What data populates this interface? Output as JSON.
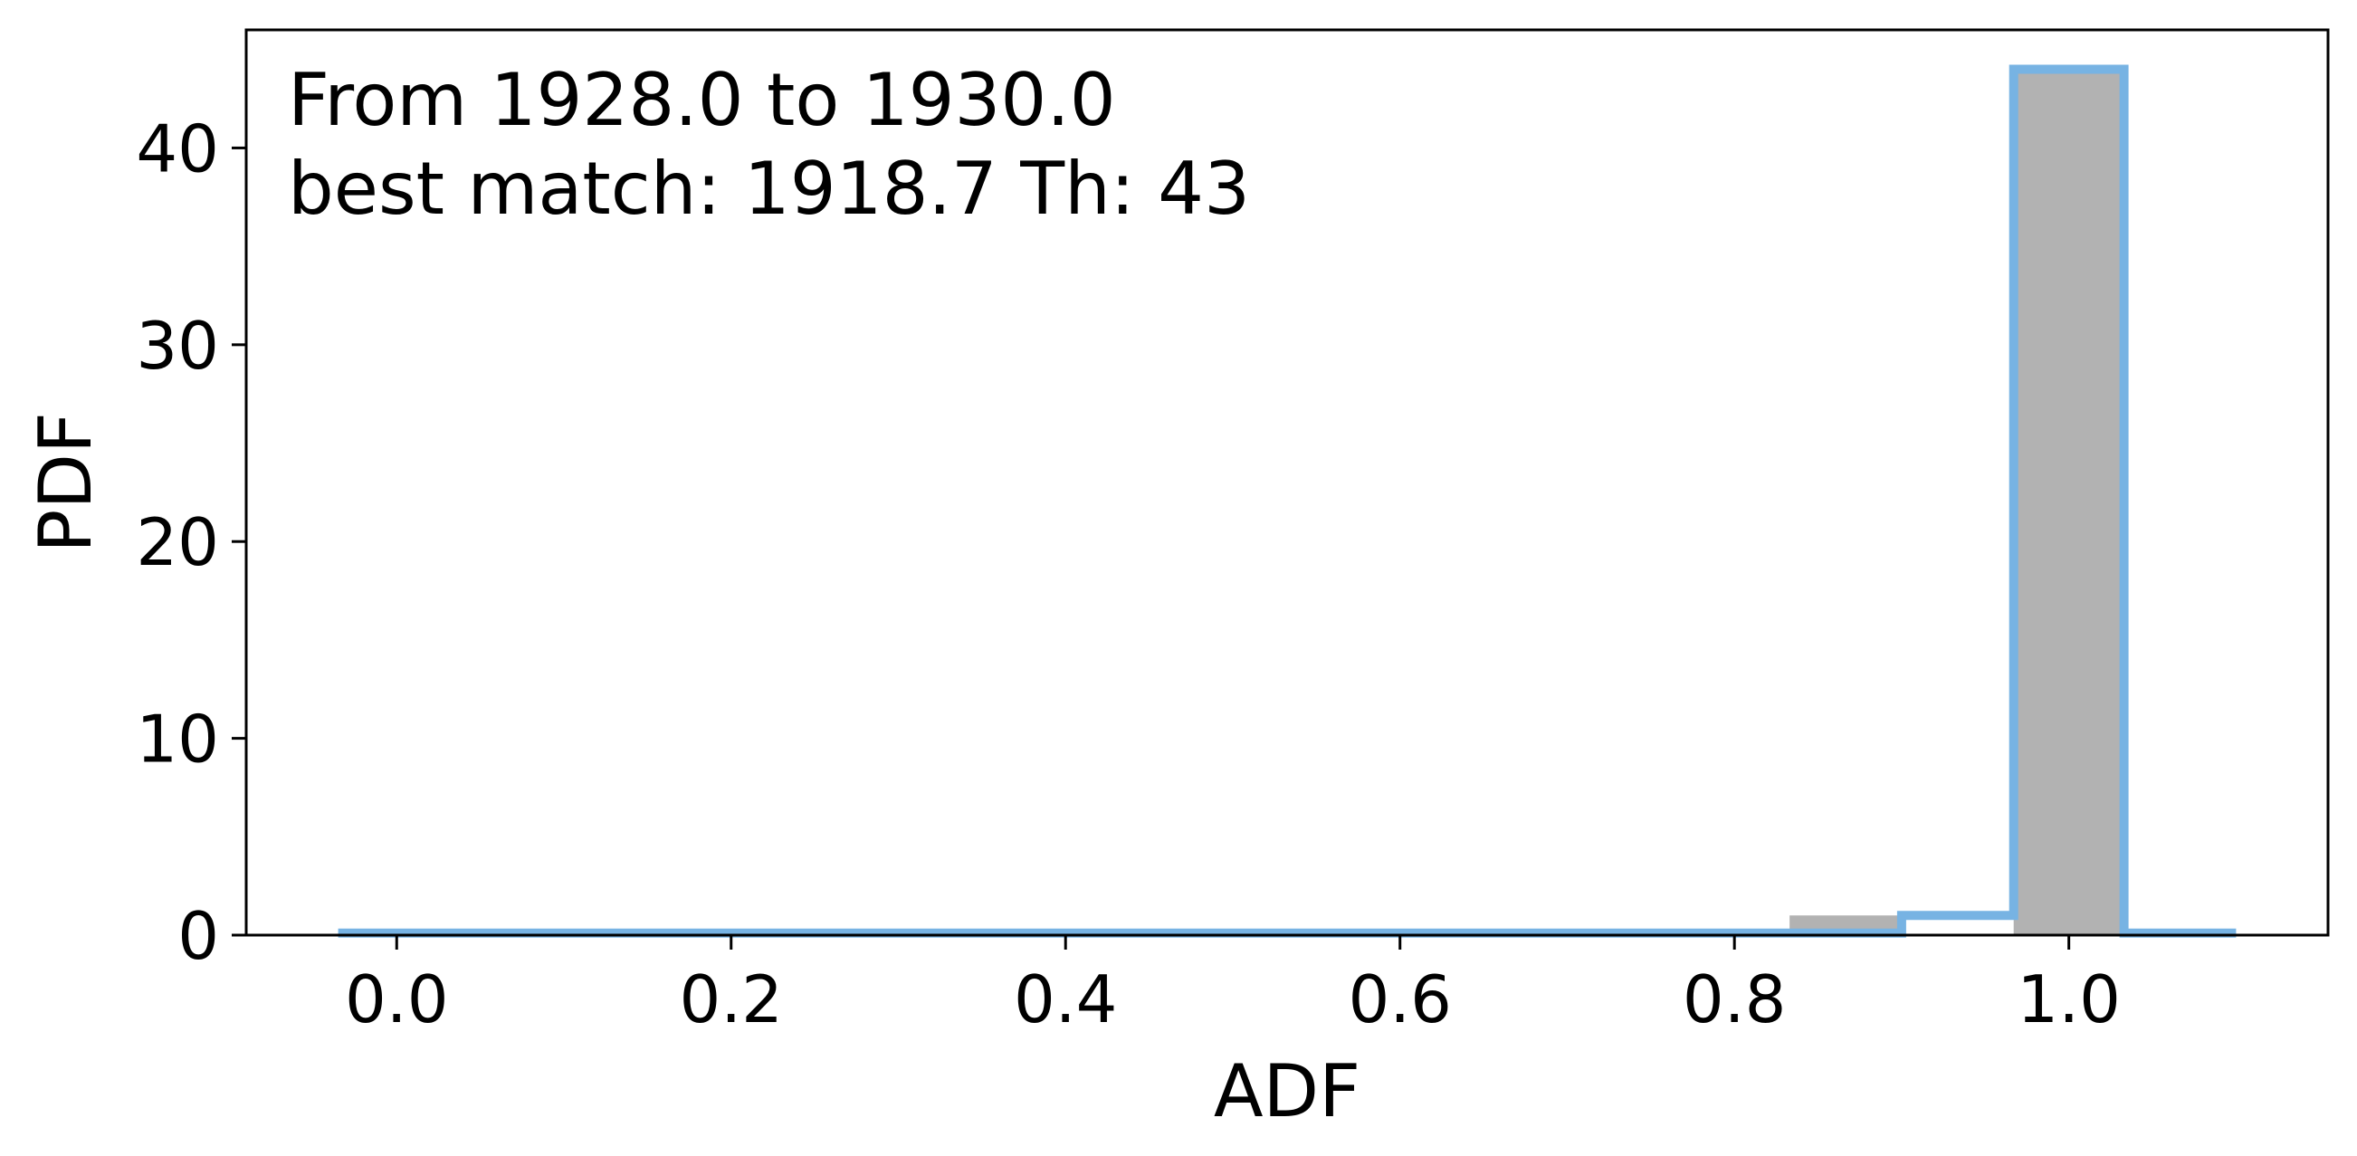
{
  "chart_data": {
    "type": "bar",
    "annotations": [
      "From 1928.0 to 1930.0",
      "best match: 1918.7  Th: 43"
    ],
    "xlabel": "ADF",
    "ylabel": "PDF",
    "xlim": [
      -0.09,
      1.155
    ],
    "ylim": [
      0,
      46
    ],
    "xticks": [
      0.0,
      0.2,
      0.4,
      0.6,
      0.8,
      1.0
    ],
    "xtick_labels": [
      "0.0",
      "0.2",
      "0.4",
      "0.6",
      "0.8",
      "1.0"
    ],
    "yticks": [
      0,
      10,
      20,
      30,
      40
    ],
    "ytick_labels": [
      "0",
      "10",
      "20",
      "30",
      "40"
    ],
    "grid": false,
    "bar_color": "#b2b2b2",
    "step_color": "#77b3e3",
    "bars": [
      {
        "x0": 0.833,
        "x1": 0.9,
        "value": 1.0
      },
      {
        "x0": 0.967,
        "x1": 1.033,
        "value": 43.8
      }
    ],
    "step_series": {
      "x": [
        -0.035,
        0.9,
        0.9,
        0.967,
        0.967,
        1.033,
        1.033,
        1.1
      ],
      "y": [
        0.1,
        0.1,
        1.0,
        1.0,
        44.0,
        44.0,
        0.1,
        0.1
      ]
    }
  }
}
